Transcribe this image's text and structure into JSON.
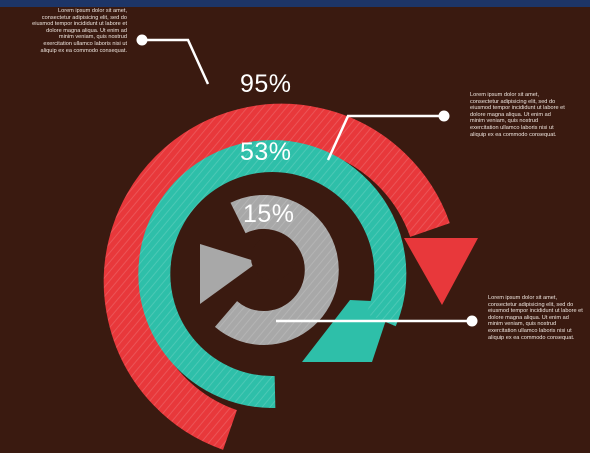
{
  "colors": {
    "background": "#3a1a10",
    "top_bar": "#1d3567",
    "outer_ring": "#e8383b",
    "middle_ring": "#2ebfa9",
    "inner_ring": "#a8a8a8",
    "text": "#ffffff"
  },
  "rings": [
    {
      "name": "outer",
      "label": "95%",
      "value": 95
    },
    {
      "name": "middle",
      "label": "53%",
      "value": 53
    },
    {
      "name": "inner",
      "label": "15%",
      "value": 15
    }
  ],
  "callouts": [
    {
      "id": "top-left",
      "lines": [
        "Lorem ipsum dolor sit amet,",
        "consectetur adipisicing elit, sed do",
        "eiusmod tempor incididunt ut labore et",
        "dolore magna aliqua. Ut enim ad",
        "minim veniam, quis nostrud",
        "exercitation ullamco laboris nisi ut",
        "aliquip ex ea commodo consequat."
      ]
    },
    {
      "id": "right-upper",
      "lines": [
        "Lorem ipsum dolor sit amet,",
        "consectetur adipisicing elit, sed do",
        "eiusmod tempor incididunt ut labore et",
        "dolore magna aliqua. Ut enim ad",
        "minim veniam, quis nostrud",
        "exercitation ullamco laboris nisi ut",
        "aliquip ex ea commodo consequat."
      ]
    },
    {
      "id": "right-lower",
      "lines": [
        "Lorem ipsum dolor sit amet,",
        "consectetur adipisicing elit, sed do",
        "eiusmod tempor incididunt ut labore et",
        "dolore magna aliqua. Ut enim ad",
        "minim veniam, quis nostrud",
        "exercitation ullamco laboris nisi ut",
        "aliquip ex ea commodo consequat."
      ]
    }
  ]
}
